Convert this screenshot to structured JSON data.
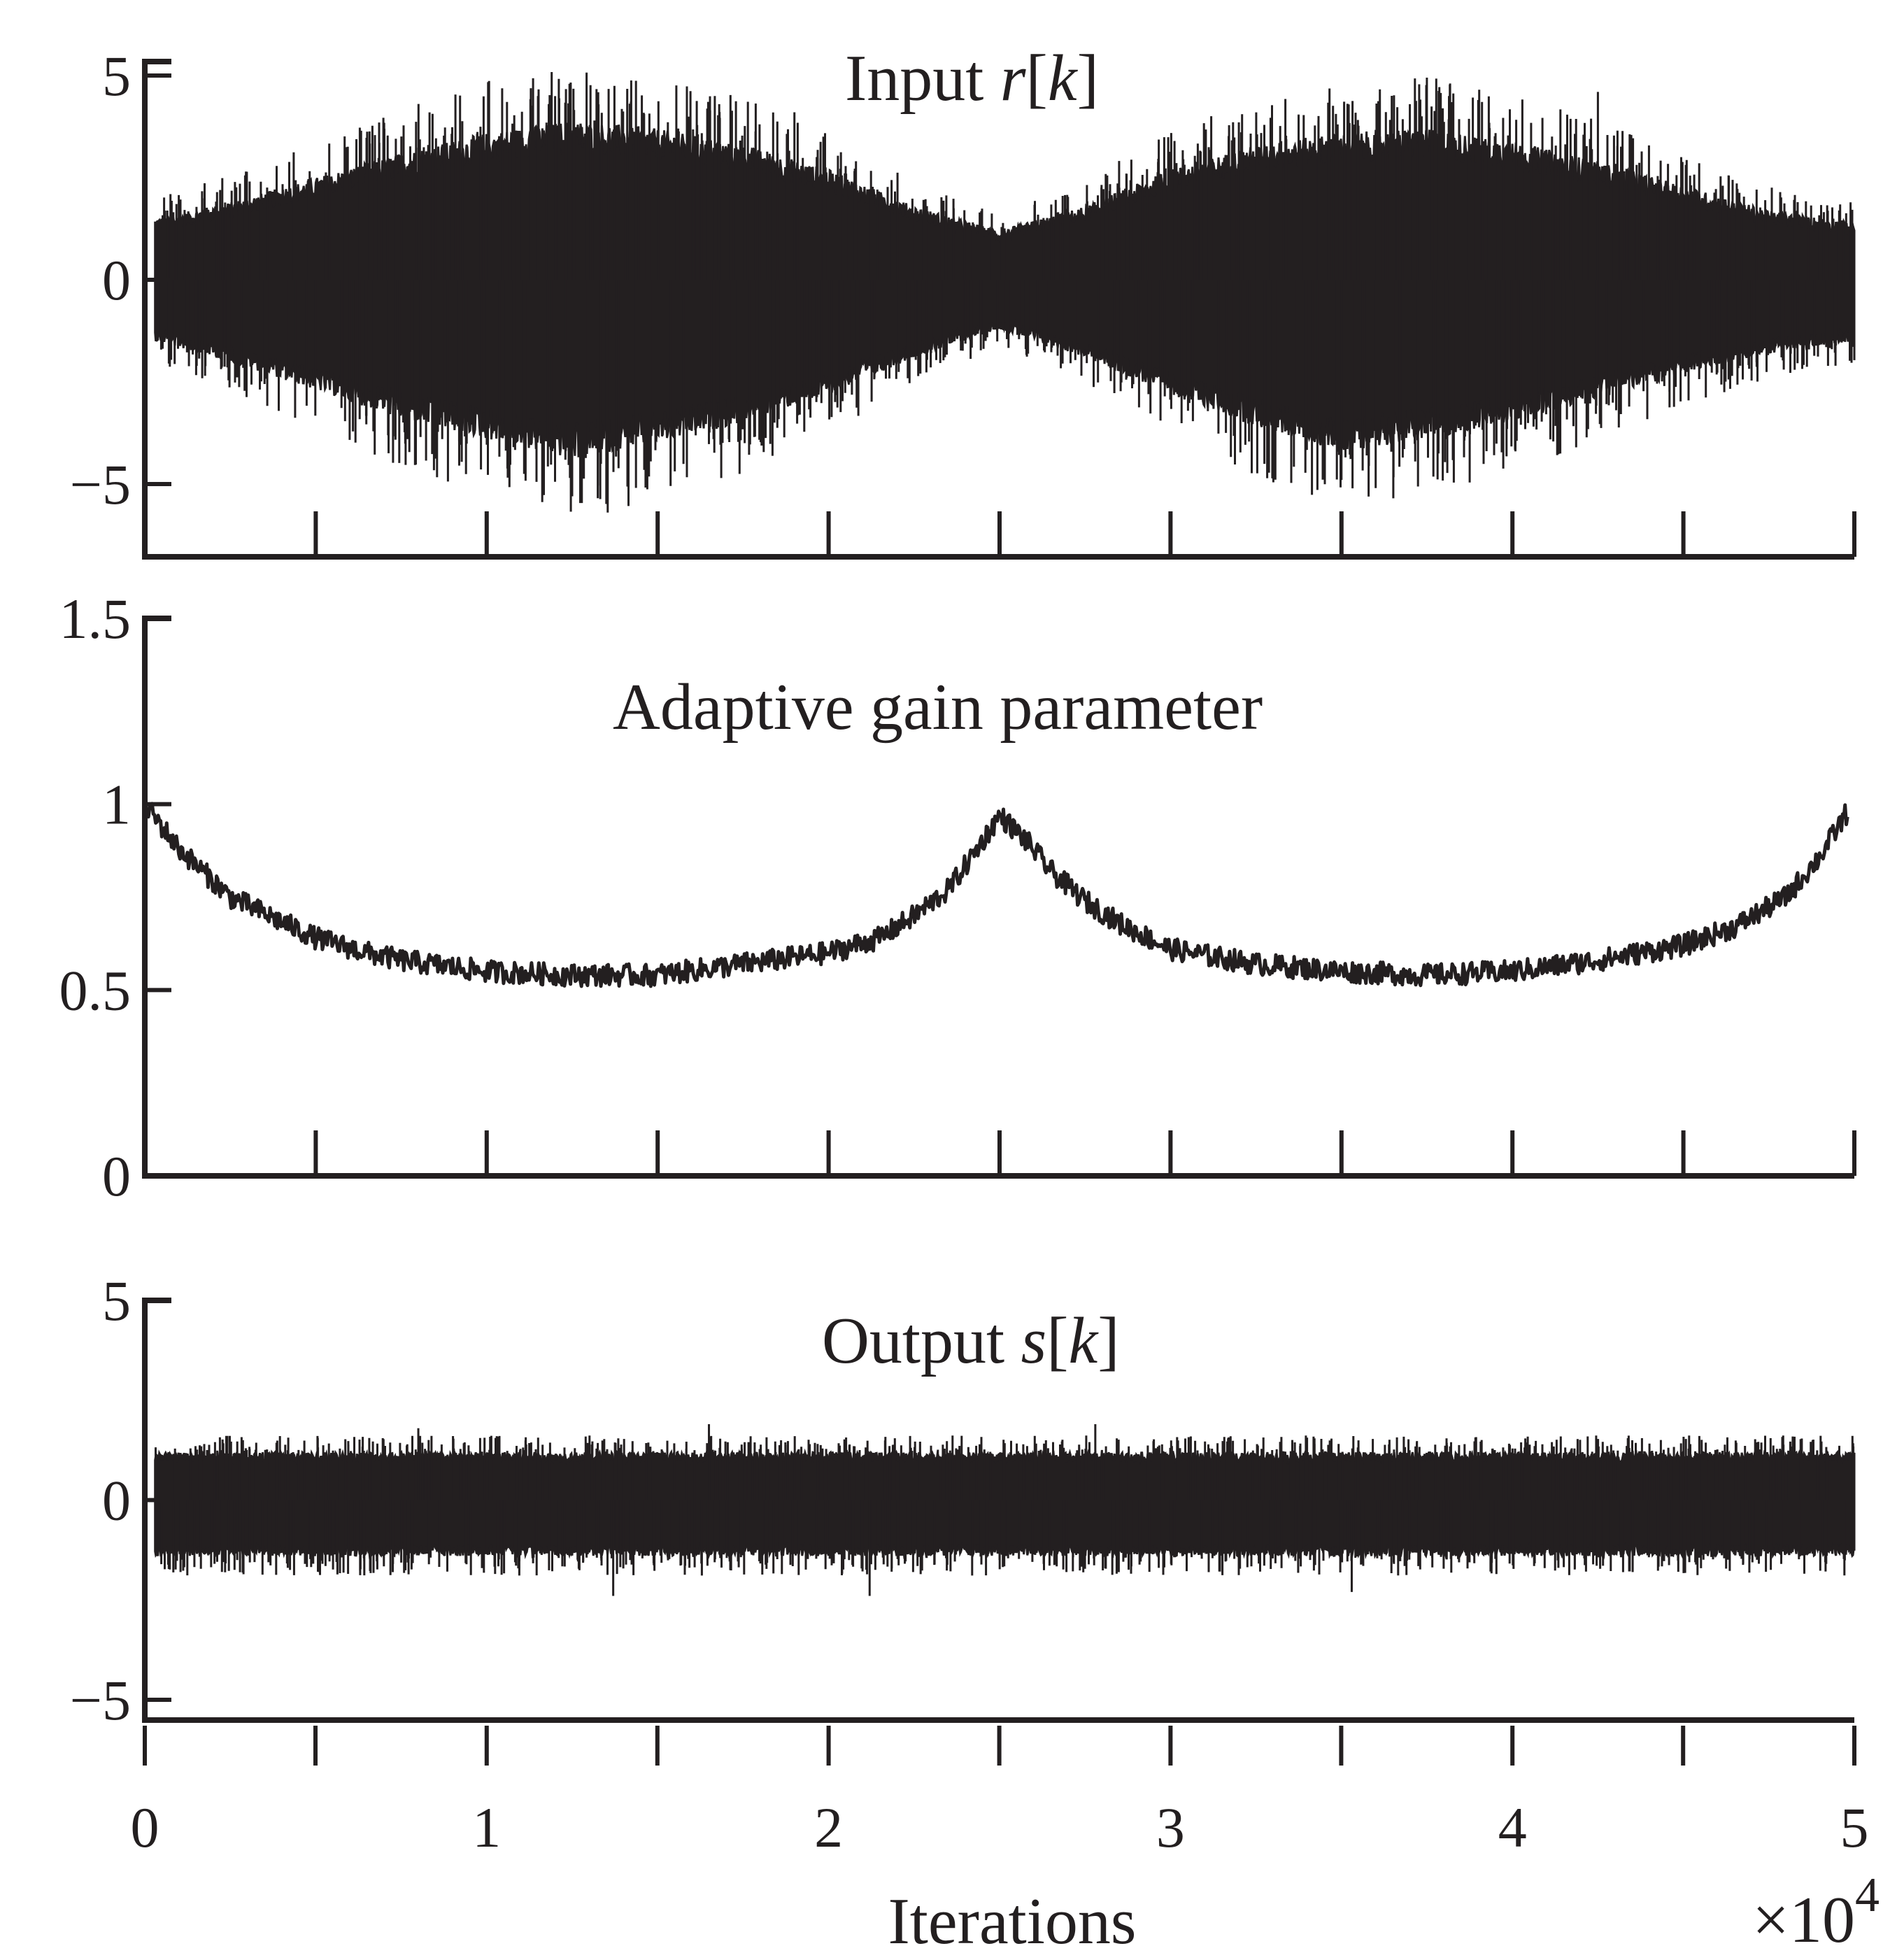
{
  "figure": {
    "xlabel": "Iterations",
    "x_multiplier": "×10",
    "x_multiplier_exp": "4"
  },
  "chart_data": [
    {
      "type": "line",
      "title_prefix": "Input ",
      "title_var": "r",
      "title_open": "[",
      "title_index": "k",
      "title_close": "]",
      "ylim": [
        -7,
        6
      ],
      "yticks": [
        5,
        0,
        -5
      ],
      "ytick_labels": [
        "5",
        "0",
        "−5"
      ],
      "xlim": [
        0,
        50000
      ],
      "xticks": [
        0,
        5000,
        10000,
        15000,
        20000,
        25000,
        30000,
        35000,
        40000,
        45000,
        50000
      ],
      "show_xtick_labels": false,
      "envelope": {
        "x": [
          300,
          2500,
          5000,
          7500,
          10000,
          12500,
          15000,
          17500,
          20000,
          22500,
          25000,
          27500,
          30000,
          32500,
          35000,
          37500,
          40000,
          42500,
          45000,
          47500,
          50000
        ],
        "upper": [
          1.5,
          1.9,
          2.5,
          3.1,
          3.6,
          3.9,
          3.7,
          3.3,
          2.7,
          1.8,
          1.2,
          1.8,
          2.7,
          3.3,
          3.6,
          3.7,
          3.4,
          2.9,
          2.3,
          1.7,
          1.4
        ],
        "lower": [
          -1.5,
          -2.0,
          -2.7,
          -3.4,
          -3.9,
          -4.4,
          -4.0,
          -3.5,
          -2.8,
          -1.9,
          -1.2,
          -1.9,
          -2.8,
          -3.6,
          -4.2,
          -3.9,
          -3.5,
          -2.9,
          -2.3,
          -1.8,
          -1.5
        ]
      },
      "peaks": {
        "x": [
          11500,
          12500,
          16800,
          19000,
          35000,
          37000,
          39000,
          42500
        ],
        "y": [
          4.5,
          -5.3,
          4.3,
          4.1,
          -4.9,
          4.3,
          4.4,
          4.6
        ]
      }
    },
    {
      "type": "line",
      "title": "Adaptive gain parameter",
      "ylim": [
        0,
        1.5
      ],
      "yticks": [
        1.5,
        1,
        0.5,
        0
      ],
      "ytick_labels": [
        "1.5",
        "1",
        "0.5",
        "0"
      ],
      "xlim": [
        0,
        50000
      ],
      "xticks": [
        0,
        5000,
        10000,
        15000,
        20000,
        25000,
        30000,
        35000,
        40000,
        45000,
        50000
      ],
      "show_xtick_labels": false,
      "series": [
        {
          "x": [
            0,
            1000,
            2500,
            5000,
            6500,
            7500,
            10000,
            12500,
            15000,
            17500,
            20000,
            21500,
            22500,
            23500,
            24200,
            25000,
            25800,
            26500,
            27500,
            28500,
            30000,
            32500,
            35000,
            37500,
            40000,
            42500,
            45000,
            46500,
            48000,
            49000,
            49800
          ],
          "y": [
            1.0,
            0.88,
            0.75,
            0.64,
            0.6,
            0.58,
            0.55,
            0.54,
            0.54,
            0.57,
            0.6,
            0.64,
            0.7,
            0.77,
            0.86,
            0.97,
            0.9,
            0.82,
            0.74,
            0.68,
            0.61,
            0.57,
            0.55,
            0.54,
            0.55,
            0.58,
            0.62,
            0.67,
            0.75,
            0.86,
            0.98
          ]
        }
      ]
    },
    {
      "type": "line",
      "title_prefix": "Output ",
      "title_var": "s",
      "title_open": "[",
      "title_index": "k",
      "title_close": "]",
      "ylim": [
        -5.5,
        5.5
      ],
      "yticks": [
        5,
        0,
        -5
      ],
      "ytick_labels": [
        "5",
        "0",
        "−5"
      ],
      "xlim": [
        0,
        50000
      ],
      "xticks": [
        0,
        10000,
        20000,
        30000,
        40000,
        50000
      ],
      "xtick_labels": [
        "0",
        "1",
        "2",
        "3",
        "4",
        "5"
      ],
      "show_xtick_labels": true,
      "envelope": {
        "x": [
          300,
          10000,
          20000,
          30000,
          40000,
          50000
        ],
        "upper": [
          1.2,
          1.2,
          1.2,
          1.2,
          1.2,
          1.2
        ],
        "lower": [
          -1.4,
          -1.4,
          -1.4,
          -1.4,
          -1.4,
          -1.4
        ]
      },
      "peaks": {
        "x": [
          16500,
          27800,
          13700,
          21200,
          35300,
          8000
        ],
        "y": [
          1.9,
          1.9,
          -2.4,
          -2.4,
          -2.3,
          1.8
        ]
      }
    }
  ]
}
